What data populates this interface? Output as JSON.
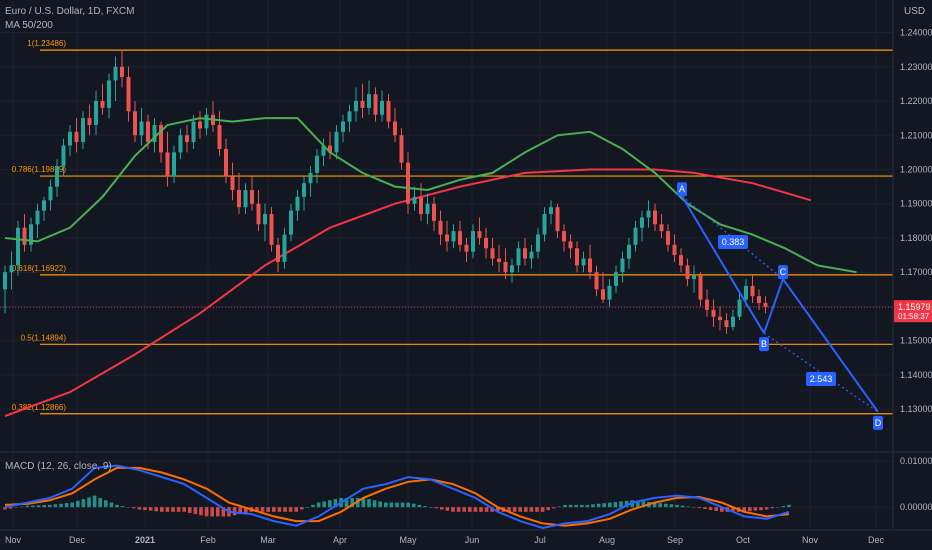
{
  "header": {
    "symbol": "Euro / U.S. Dollar, 1D, FXCM",
    "ma_label": "MA 50/200",
    "macd_label": "MACD (12, 26, close, 9)",
    "currency": "USD"
  },
  "price": {
    "last": "1.15979",
    "countdown": "01:58:37"
  },
  "chart_data": {
    "type": "candlestick",
    "title": "Euro / U.S. Dollar, 1D, FXCM",
    "subtitle": "MA 50/200",
    "ylim": [
      1.121,
      1.246
    ],
    "yticks": [
      1.13,
      1.14,
      1.15,
      1.16,
      1.17,
      1.18,
      1.19,
      1.2,
      1.21,
      1.22,
      1.23,
      1.24
    ],
    "ytick_labels": [
      "1.13000",
      "1.14000",
      "1.15000",
      "1.16000",
      "1.17000",
      "1.18000",
      "1.19000",
      "1.20000",
      "1.21000",
      "1.22000",
      "1.23000",
      "1.24000"
    ],
    "x_ticks": [
      "Nov",
      "Dec",
      "2021",
      "Feb",
      "Mar",
      "Apr",
      "May",
      "Jun",
      "Jul",
      "Aug",
      "Sep",
      "Oct",
      "Nov",
      "Dec"
    ],
    "fib_levels": [
      {
        "label": "1(1.23486)",
        "value": 1.23486
      },
      {
        "label": "0.786(1.19809)",
        "value": 1.19809
      },
      {
        "label": "0.618(1.16922)",
        "value": 1.16922
      },
      {
        "label": "0.5(1.14894)",
        "value": 1.14894
      },
      {
        "label": "0.382(1.12866)",
        "value": 1.12866
      }
    ],
    "last_price": 1.15979,
    "ma50": [
      [
        0,
        1.18
      ],
      [
        5,
        1.179
      ],
      [
        10,
        1.183
      ],
      [
        15,
        1.192
      ],
      [
        20,
        1.204
      ],
      [
        25,
        1.213
      ],
      [
        30,
        1.215
      ],
      [
        35,
        1.214
      ],
      [
        40,
        1.215
      ],
      [
        45,
        1.215
      ],
      [
        50,
        1.205
      ],
      [
        55,
        1.199
      ],
      [
        60,
        1.195
      ],
      [
        65,
        1.194
      ],
      [
        70,
        1.197
      ],
      [
        75,
        1.199
      ],
      [
        80,
        1.205
      ],
      [
        85,
        1.21
      ],
      [
        90,
        1.211
      ],
      [
        95,
        1.206
      ],
      [
        100,
        1.199
      ],
      [
        105,
        1.19
      ],
      [
        110,
        1.184
      ],
      [
        115,
        1.181
      ],
      [
        120,
        1.177
      ],
      [
        125,
        1.172
      ],
      [
        131,
        1.17
      ]
    ],
    "ma200": [
      [
        0,
        1.128
      ],
      [
        10,
        1.135
      ],
      [
        20,
        1.146
      ],
      [
        30,
        1.158
      ],
      [
        40,
        1.172
      ],
      [
        50,
        1.183
      ],
      [
        60,
        1.19
      ],
      [
        70,
        1.195
      ],
      [
        80,
        1.199
      ],
      [
        90,
        1.2
      ],
      [
        100,
        1.2
      ],
      [
        106,
        1.199
      ],
      [
        115,
        1.196
      ],
      [
        124,
        1.191
      ]
    ],
    "candles": [
      [
        1.165,
        1.172,
        1.158,
        1.17
      ],
      [
        1.17,
        1.176,
        1.165,
        1.172
      ],
      [
        1.172,
        1.185,
        1.169,
        1.183
      ],
      [
        1.183,
        1.187,
        1.176,
        1.178
      ],
      [
        1.178,
        1.186,
        1.176,
        1.184
      ],
      [
        1.184,
        1.19,
        1.18,
        1.188
      ],
      [
        1.188,
        1.192,
        1.185,
        1.191
      ],
      [
        1.191,
        1.197,
        1.188,
        1.195
      ],
      [
        1.195,
        1.203,
        1.192,
        1.201
      ],
      [
        1.201,
        1.209,
        1.198,
        1.207
      ],
      [
        1.207,
        1.213,
        1.204,
        1.211
      ],
      [
        1.211,
        1.215,
        1.205,
        1.208
      ],
      [
        1.208,
        1.217,
        1.206,
        1.215
      ],
      [
        1.215,
        1.219,
        1.21,
        1.213
      ],
      [
        1.213,
        1.223,
        1.21,
        1.22
      ],
      [
        1.22,
        1.225,
        1.216,
        1.218
      ],
      [
        1.218,
        1.228,
        1.215,
        1.226
      ],
      [
        1.226,
        1.233,
        1.22,
        1.23
      ],
      [
        1.23,
        1.235,
        1.224,
        1.227
      ],
      [
        1.227,
        1.23,
        1.214,
        1.217
      ],
      [
        1.217,
        1.22,
        1.208,
        1.21
      ],
      [
        1.21,
        1.218,
        1.207,
        1.214
      ],
      [
        1.214,
        1.216,
        1.206,
        1.208
      ],
      [
        1.208,
        1.215,
        1.205,
        1.213
      ],
      [
        1.213,
        1.214,
        1.202,
        1.205
      ],
      [
        1.205,
        1.211,
        1.195,
        1.198
      ],
      [
        1.198,
        1.207,
        1.196,
        1.205
      ],
      [
        1.205,
        1.212,
        1.203,
        1.21
      ],
      [
        1.21,
        1.213,
        1.205,
        1.208
      ],
      [
        1.208,
        1.216,
        1.206,
        1.214
      ],
      [
        1.214,
        1.217,
        1.209,
        1.212
      ],
      [
        1.212,
        1.218,
        1.21,
        1.216
      ],
      [
        1.216,
        1.22,
        1.211,
        1.213
      ],
      [
        1.213,
        1.217,
        1.204,
        1.206
      ],
      [
        1.206,
        1.209,
        1.196,
        1.198
      ],
      [
        1.198,
        1.202,
        1.191,
        1.194
      ],
      [
        1.194,
        1.199,
        1.187,
        1.189
      ],
      [
        1.189,
        1.196,
        1.187,
        1.194
      ],
      [
        1.194,
        1.198,
        1.188,
        1.19
      ],
      [
        1.19,
        1.194,
        1.182,
        1.184
      ],
      [
        1.184,
        1.19,
        1.179,
        1.187
      ],
      [
        1.187,
        1.189,
        1.176,
        1.178
      ],
      [
        1.178,
        1.18,
        1.17,
        1.173
      ],
      [
        1.173,
        1.183,
        1.171,
        1.181
      ],
      [
        1.181,
        1.19,
        1.179,
        1.188
      ],
      [
        1.188,
        1.194,
        1.185,
        1.192
      ],
      [
        1.192,
        1.198,
        1.188,
        1.196
      ],
      [
        1.196,
        1.201,
        1.192,
        1.199
      ],
      [
        1.199,
        1.206,
        1.196,
        1.204
      ],
      [
        1.204,
        1.209,
        1.201,
        1.207
      ],
      [
        1.207,
        1.211,
        1.203,
        1.205
      ],
      [
        1.205,
        1.213,
        1.203,
        1.211
      ],
      [
        1.211,
        1.216,
        1.208,
        1.214
      ],
      [
        1.214,
        1.219,
        1.211,
        1.217
      ],
      [
        1.217,
        1.224,
        1.214,
        1.22
      ],
      [
        1.22,
        1.225,
        1.215,
        1.218
      ],
      [
        1.218,
        1.226,
        1.216,
        1.222
      ],
      [
        1.222,
        1.224,
        1.214,
        1.216
      ],
      [
        1.216,
        1.223,
        1.214,
        1.22
      ],
      [
        1.22,
        1.222,
        1.212,
        1.214
      ],
      [
        1.214,
        1.218,
        1.208,
        1.21
      ],
      [
        1.21,
        1.212,
        1.2,
        1.202
      ],
      [
        1.202,
        1.205,
        1.187,
        1.19
      ],
      [
        1.19,
        1.195,
        1.188,
        1.192
      ],
      [
        1.192,
        1.196,
        1.185,
        1.187
      ],
      [
        1.187,
        1.193,
        1.184,
        1.19
      ],
      [
        1.19,
        1.192,
        1.182,
        1.185
      ],
      [
        1.185,
        1.188,
        1.178,
        1.181
      ],
      [
        1.181,
        1.185,
        1.176,
        1.179
      ],
      [
        1.179,
        1.184,
        1.177,
        1.182
      ],
      [
        1.182,
        1.185,
        1.176,
        1.178
      ],
      [
        1.178,
        1.18,
        1.173,
        1.176
      ],
      [
        1.176,
        1.184,
        1.174,
        1.182
      ],
      [
        1.182,
        1.186,
        1.178,
        1.18
      ],
      [
        1.18,
        1.183,
        1.174,
        1.177
      ],
      [
        1.177,
        1.18,
        1.172,
        1.174
      ],
      [
        1.174,
        1.178,
        1.17,
        1.173
      ],
      [
        1.173,
        1.177,
        1.168,
        1.17
      ],
      [
        1.17,
        1.174,
        1.167,
        1.172
      ],
      [
        1.172,
        1.179,
        1.17,
        1.177
      ],
      [
        1.177,
        1.18,
        1.172,
        1.174
      ],
      [
        1.174,
        1.178,
        1.171,
        1.176
      ],
      [
        1.176,
        1.183,
        1.174,
        1.181
      ],
      [
        1.181,
        1.189,
        1.179,
        1.187
      ],
      [
        1.187,
        1.191,
        1.184,
        1.189
      ],
      [
        1.189,
        1.19,
        1.18,
        1.182
      ],
      [
        1.182,
        1.184,
        1.176,
        1.179
      ],
      [
        1.179,
        1.181,
        1.174,
        1.177
      ],
      [
        1.177,
        1.179,
        1.17,
        1.172
      ],
      [
        1.172,
        1.176,
        1.17,
        1.174
      ],
      [
        1.174,
        1.178,
        1.168,
        1.17
      ],
      [
        1.17,
        1.172,
        1.163,
        1.165
      ],
      [
        1.165,
        1.17,
        1.161,
        1.162
      ],
      [
        1.162,
        1.168,
        1.16,
        1.166
      ],
      [
        1.166,
        1.172,
        1.164,
        1.17
      ],
      [
        1.17,
        1.176,
        1.167,
        1.174
      ],
      [
        1.174,
        1.18,
        1.171,
        1.178
      ],
      [
        1.178,
        1.185,
        1.176,
        1.183
      ],
      [
        1.183,
        1.188,
        1.179,
        1.186
      ],
      [
        1.186,
        1.191,
        1.183,
        1.188
      ],
      [
        1.188,
        1.19,
        1.182,
        1.184
      ],
      [
        1.184,
        1.187,
        1.18,
        1.182
      ],
      [
        1.182,
        1.184,
        1.176,
        1.178
      ],
      [
        1.178,
        1.181,
        1.173,
        1.175
      ],
      [
        1.175,
        1.177,
        1.17,
        1.172
      ],
      [
        1.172,
        1.174,
        1.166,
        1.168
      ],
      [
        1.168,
        1.172,
        1.164,
        1.169
      ],
      [
        1.169,
        1.17,
        1.16,
        1.162
      ],
      [
        1.162,
        1.165,
        1.157,
        1.159
      ],
      [
        1.159,
        1.162,
        1.154,
        1.157
      ],
      [
        1.157,
        1.16,
        1.153,
        1.156
      ],
      [
        1.156,
        1.158,
        1.152,
        1.154
      ],
      [
        1.154,
        1.159,
        1.153,
        1.157
      ],
      [
        1.157,
        1.164,
        1.156,
        1.162
      ],
      [
        1.162,
        1.168,
        1.16,
        1.166
      ],
      [
        1.166,
        1.169,
        1.161,
        1.163
      ],
      [
        1.163,
        1.165,
        1.159,
        1.161
      ],
      [
        1.161,
        1.163,
        1.158,
        1.1598
      ]
    ],
    "macd_panel": {
      "label": "MACD (12, 26, close, 9)",
      "ylim": [
        -0.0045,
        0.0115
      ],
      "yticks": [
        0.01,
        0.0
      ],
      "ytick_labels": [
        "0.01000",
        "0.00000"
      ],
      "macd": [
        [
          0,
          0.0
        ],
        [
          4,
          0.001
        ],
        [
          8,
          0.002
        ],
        [
          12,
          0.004
        ],
        [
          16,
          0.0085
        ],
        [
          20,
          0.009
        ],
        [
          24,
          0.008
        ],
        [
          28,
          0.0065
        ],
        [
          32,
          0.005
        ],
        [
          36,
          0.002
        ],
        [
          40,
          -0.001
        ],
        [
          44,
          -0.0015
        ],
        [
          48,
          -0.003
        ],
        [
          52,
          -0.004
        ],
        [
          56,
          -0.002
        ],
        [
          60,
          0.001
        ],
        [
          64,
          0.004
        ],
        [
          68,
          0.005
        ],
        [
          72,
          0.0065
        ],
        [
          76,
          0.006
        ],
        [
          80,
          0.004
        ],
        [
          84,
          0.002
        ],
        [
          88,
          -0.001
        ],
        [
          92,
          -0.003
        ],
        [
          96,
          -0.0045
        ],
        [
          100,
          -0.0035
        ],
        [
          104,
          -0.003
        ],
        [
          108,
          -0.0015
        ],
        [
          112,
          0.001
        ],
        [
          116,
          0.002
        ],
        [
          120,
          0.0025
        ],
        [
          124,
          0.002
        ],
        [
          128,
          0.0
        ],
        [
          132,
          -0.002
        ],
        [
          136,
          -0.0025
        ],
        [
          140,
          -0.001
        ]
      ],
      "signal": [
        [
          0,
          0.0005
        ],
        [
          4,
          0.0007
        ],
        [
          8,
          0.0015
        ],
        [
          12,
          0.003
        ],
        [
          16,
          0.006
        ],
        [
          20,
          0.0085
        ],
        [
          24,
          0.0085
        ],
        [
          28,
          0.0075
        ],
        [
          32,
          0.006
        ],
        [
          36,
          0.004
        ],
        [
          40,
          0.001
        ],
        [
          44,
          -0.0005
        ],
        [
          48,
          -0.002
        ],
        [
          52,
          -0.003
        ],
        [
          56,
          -0.003
        ],
        [
          60,
          -0.001
        ],
        [
          64,
          0.002
        ],
        [
          68,
          0.004
        ],
        [
          72,
          0.0055
        ],
        [
          76,
          0.006
        ],
        [
          80,
          0.005
        ],
        [
          84,
          0.003
        ],
        [
          88,
          0.0
        ],
        [
          92,
          -0.002
        ],
        [
          96,
          -0.0035
        ],
        [
          100,
          -0.004
        ],
        [
          104,
          -0.0035
        ],
        [
          108,
          -0.0025
        ],
        [
          112,
          -0.0005
        ],
        [
          116,
          0.001
        ],
        [
          120,
          0.002
        ],
        [
          124,
          0.0022
        ],
        [
          128,
          0.001
        ],
        [
          132,
          -0.001
        ],
        [
          136,
          -0.002
        ],
        [
          140,
          -0.0015
        ]
      ]
    }
  },
  "annotations": {
    "point_A": "A",
    "point_B": "B",
    "point_C": "C",
    "point_D": "D",
    "ratio_bc": "0.383",
    "ratio_cd": "2.543"
  },
  "colors": {
    "background": "#131722",
    "grid": "#1c2030",
    "axis_text": "#b2b5be",
    "fib_line": "#ff9800",
    "fib_text": "#ff9800",
    "up_candle": "#26a69a",
    "down_candle": "#ef5350",
    "ma50": "#4caf50",
    "ma200": "#f23645",
    "pattern": "#2962ff",
    "macd_line": "#2962ff",
    "signal_line": "#ff6d00",
    "hist_up": "#26a69a",
    "hist_down": "#ef5350",
    "price_tag": "#f23645"
  }
}
